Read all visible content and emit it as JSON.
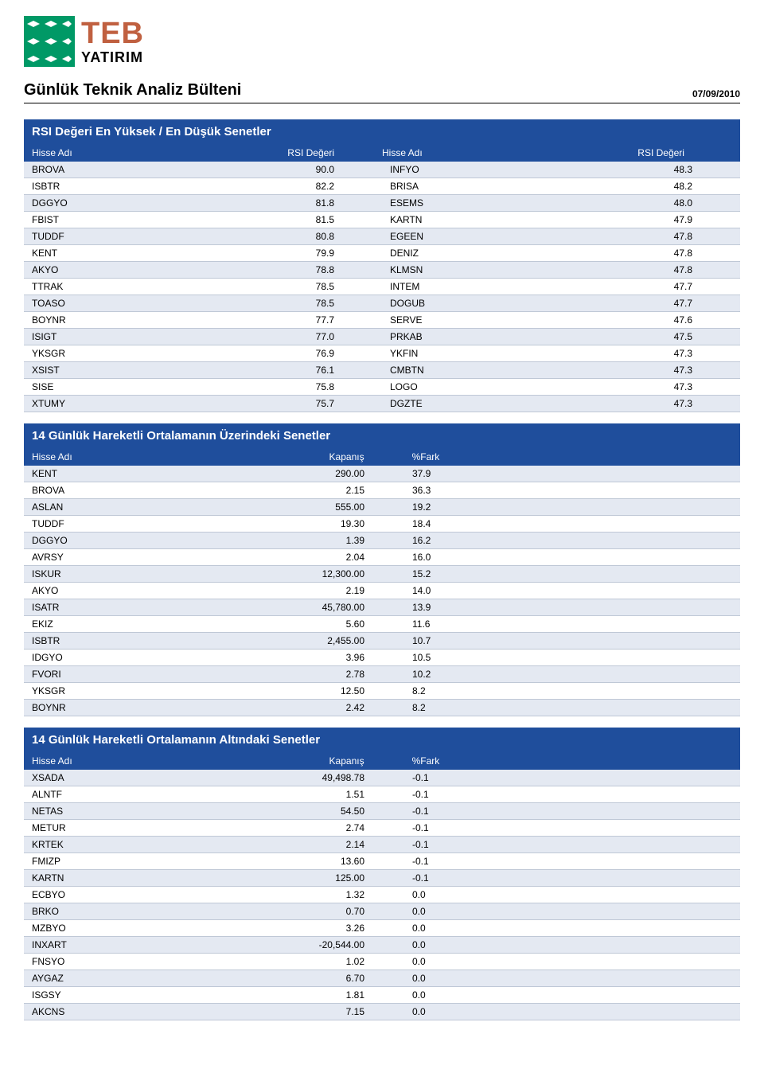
{
  "logo": {
    "teb": "TEB",
    "yatirim": "YATIRIM"
  },
  "page_title": "Günlük Teknik Analiz Bülteni",
  "date": "07/09/2010",
  "colors": {
    "header_bg": "#1f4e9c",
    "header_fg": "#ffffff",
    "row_even": "#e4e9f2",
    "row_odd": "#ffffff",
    "row_border": "#bfc8d6",
    "logo_sq": "#009966",
    "logo_teb": "#c06040"
  },
  "rsi_section": {
    "title": "RSI Değeri En Yüksek / En Düşük Senetler",
    "headers": [
      "Hisse Adı",
      "RSI Değeri",
      "Hisse Adı",
      "RSI Değeri"
    ],
    "rows": [
      [
        "BROVA",
        "90.0",
        "INFYO",
        "48.3"
      ],
      [
        "ISBTR",
        "82.2",
        "BRISA",
        "48.2"
      ],
      [
        "DGGYO",
        "81.8",
        "ESEMS",
        "48.0"
      ],
      [
        "FBIST",
        "81.5",
        "KARTN",
        "47.9"
      ],
      [
        "TUDDF",
        "80.8",
        "EGEEN",
        "47.8"
      ],
      [
        "KENT",
        "79.9",
        "DENIZ",
        "47.8"
      ],
      [
        "AKYO",
        "78.8",
        "KLMSN",
        "47.8"
      ],
      [
        "TTRAK",
        "78.5",
        "INTEM",
        "47.7"
      ],
      [
        "TOASO",
        "78.5",
        "DOGUB",
        "47.7"
      ],
      [
        "BOYNR",
        "77.7",
        "SERVE",
        "47.6"
      ],
      [
        "ISIGT",
        "77.0",
        "PRKAB",
        "47.5"
      ],
      [
        "YKSGR",
        "76.9",
        "YKFIN",
        "47.3"
      ],
      [
        "XSIST",
        "76.1",
        "CMBTN",
        "47.3"
      ],
      [
        "SISE",
        "75.8",
        "LOGO",
        "47.3"
      ],
      [
        "XTUMY",
        "75.7",
        "DGZTE",
        "47.3"
      ]
    ]
  },
  "above_ma": {
    "title": "14 Günlük Hareketli Ortalamanın Üzerindeki Senetler",
    "headers": [
      "Hisse Adı",
      "Kapanış",
      "%Fark"
    ],
    "rows": [
      [
        "KENT",
        "290.00",
        "37.9"
      ],
      [
        "BROVA",
        "2.15",
        "36.3"
      ],
      [
        "ASLAN",
        "555.00",
        "19.2"
      ],
      [
        "TUDDF",
        "19.30",
        "18.4"
      ],
      [
        "DGGYO",
        "1.39",
        "16.2"
      ],
      [
        "AVRSY",
        "2.04",
        "16.0"
      ],
      [
        "ISKUR",
        "12,300.00",
        "15.2"
      ],
      [
        "AKYO",
        "2.19",
        "14.0"
      ],
      [
        "ISATR",
        "45,780.00",
        "13.9"
      ],
      [
        "EKIZ",
        "5.60",
        "11.6"
      ],
      [
        "ISBTR",
        "2,455.00",
        "10.7"
      ],
      [
        "IDGYO",
        "3.96",
        "10.5"
      ],
      [
        "FVORI",
        "2.78",
        "10.2"
      ],
      [
        "YKSGR",
        "12.50",
        "8.2"
      ],
      [
        "BOYNR",
        "2.42",
        "8.2"
      ]
    ]
  },
  "below_ma": {
    "title": "14 Günlük Hareketli Ortalamanın Altındaki Senetler",
    "headers": [
      "Hisse Adı",
      "Kapanış",
      "%Fark"
    ],
    "rows": [
      [
        "XSADA",
        "49,498.78",
        "-0.1"
      ],
      [
        "ALNTF",
        "1.51",
        "-0.1"
      ],
      [
        "NETAS",
        "54.50",
        "-0.1"
      ],
      [
        "METUR",
        "2.74",
        "-0.1"
      ],
      [
        "KRTEK",
        "2.14",
        "-0.1"
      ],
      [
        "FMIZP",
        "13.60",
        "-0.1"
      ],
      [
        "KARTN",
        "125.00",
        "-0.1"
      ],
      [
        "ECBYO",
        "1.32",
        "0.0"
      ],
      [
        "BRKO",
        "0.70",
        "0.0"
      ],
      [
        "MZBYO",
        "3.26",
        "0.0"
      ],
      [
        "INXART",
        "-20,544.00",
        "0.0"
      ],
      [
        "FNSYO",
        "1.02",
        "0.0"
      ],
      [
        "AYGAZ",
        "6.70",
        "0.0"
      ],
      [
        "ISGSY",
        "1.81",
        "0.0"
      ],
      [
        "AKCNS",
        "7.15",
        "0.0"
      ]
    ]
  }
}
